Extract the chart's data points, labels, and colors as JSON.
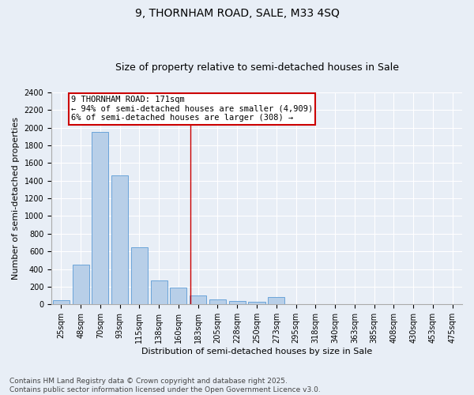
{
  "title": "9, THORNHAM ROAD, SALE, M33 4SQ",
  "subtitle": "Size of property relative to semi-detached houses in Sale",
  "xlabel": "Distribution of semi-detached houses by size in Sale",
  "ylabel": "Number of semi-detached properties",
  "categories": [
    "25sqm",
    "48sqm",
    "70sqm",
    "93sqm",
    "115sqm",
    "138sqm",
    "160sqm",
    "183sqm",
    "205sqm",
    "228sqm",
    "250sqm",
    "273sqm",
    "295sqm",
    "318sqm",
    "340sqm",
    "363sqm",
    "385sqm",
    "408sqm",
    "430sqm",
    "453sqm",
    "475sqm"
  ],
  "values": [
    50,
    450,
    1950,
    1460,
    650,
    275,
    190,
    100,
    60,
    40,
    30,
    80,
    5,
    5,
    0,
    0,
    0,
    0,
    0,
    0,
    0
  ],
  "bar_color": "#b8cfe8",
  "bar_edge_color": "#5b9bd5",
  "property_line_x": 6.62,
  "annotation_text": "9 THORNHAM ROAD: 171sqm\n← 94% of semi-detached houses are smaller (4,909)\n6% of semi-detached houses are larger (308) →",
  "annotation_box_facecolor": "#ffffff",
  "annotation_box_edgecolor": "#cc0000",
  "ylim": [
    0,
    2400
  ],
  "yticks": [
    0,
    200,
    400,
    600,
    800,
    1000,
    1200,
    1400,
    1600,
    1800,
    2000,
    2200,
    2400
  ],
  "footer": "Contains HM Land Registry data © Crown copyright and database right 2025.\nContains public sector information licensed under the Open Government Licence v3.0.",
  "bg_color": "#e8eef6",
  "grid_color": "#ffffff",
  "title_fontsize": 10,
  "subtitle_fontsize": 9,
  "ylabel_fontsize": 8,
  "xlabel_fontsize": 8,
  "tick_fontsize": 7,
  "annot_fontsize": 7.5,
  "footer_fontsize": 6.5
}
